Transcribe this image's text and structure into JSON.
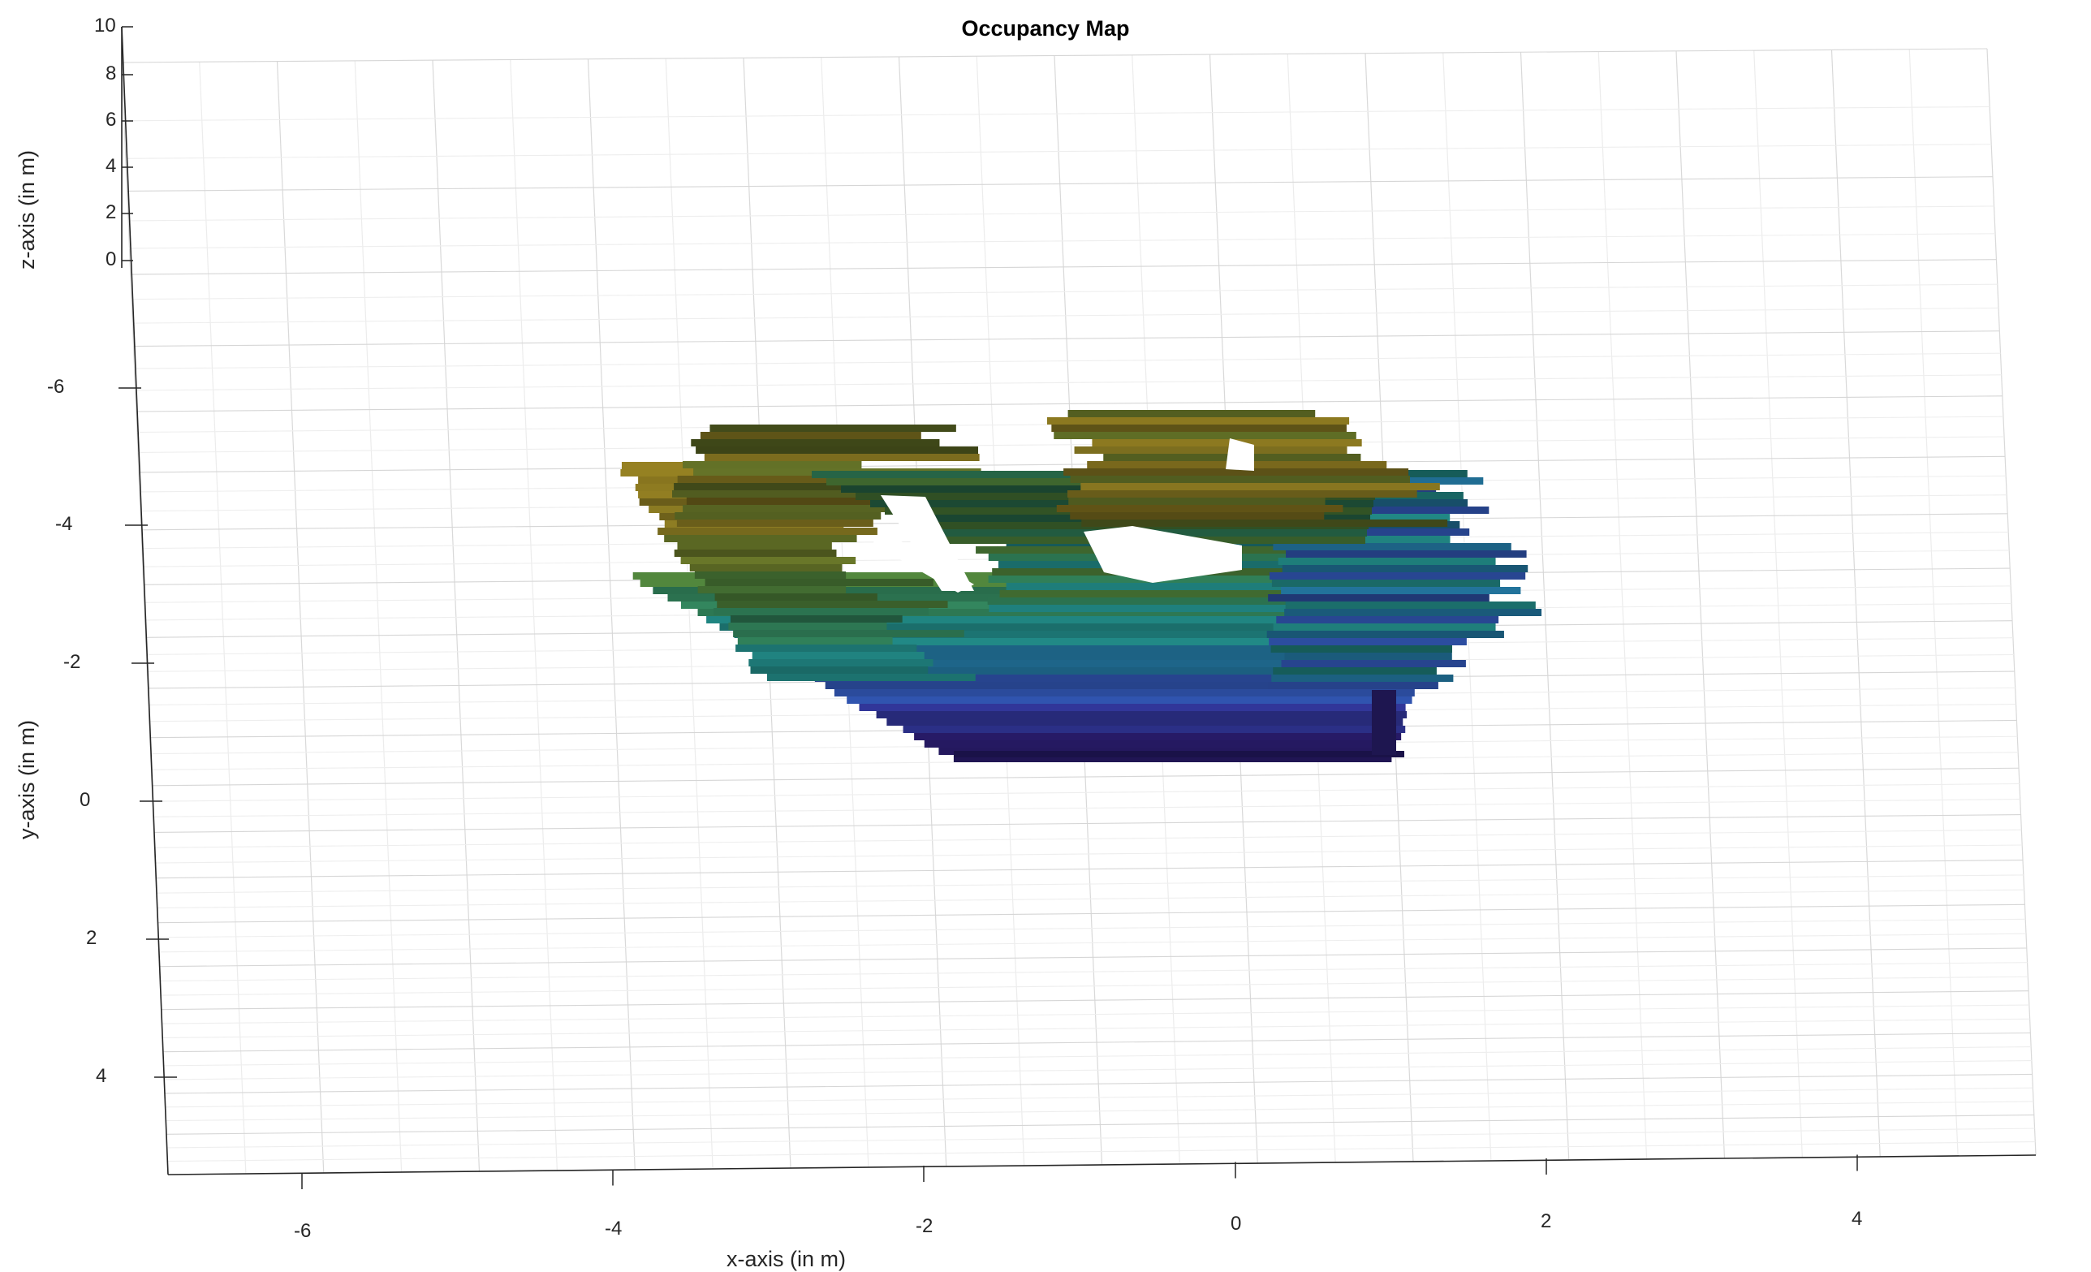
{
  "chart_data": {
    "type": "other",
    "title": "Occupancy Map",
    "xlabel": "x-axis (in m)",
    "ylabel": "y-axis (in m)",
    "zlabel": "z-axis (in m)",
    "x_ticks": [
      "-6",
      "-4",
      "-2",
      "0",
      "2",
      "4"
    ],
    "y_ticks": [
      "-6",
      "-4",
      "-2",
      "0",
      "2",
      "4"
    ],
    "z_ticks": [
      "10",
      "8",
      "6",
      "4",
      "2",
      "0"
    ],
    "xlim": [
      -7,
      5
    ],
    "ylim": [
      -7.2,
      5.4
    ],
    "zlim": [
      0,
      10
    ],
    "grid": true,
    "view": "3-D perspective, viewed from above",
    "colormap": "parula (height coloured: dark blue low, teal/green mid, olive/yellow high)",
    "colors": {
      "low": "#2b1f6e",
      "mid_low": "#1f4f8a",
      "mid": "#1f7a78",
      "mid_high": "#3f7a3a",
      "high": "#8a7a22",
      "grid": "#dcdcdc",
      "axis": "#262626"
    }
  }
}
